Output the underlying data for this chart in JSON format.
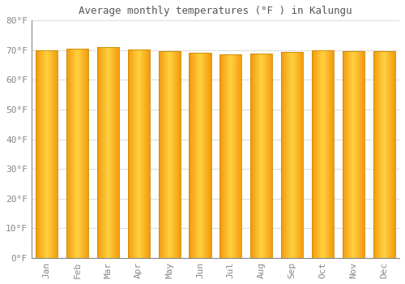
{
  "months": [
    "Jan",
    "Feb",
    "Mar",
    "Apr",
    "May",
    "Jun",
    "Jul",
    "Aug",
    "Sep",
    "Oct",
    "Nov",
    "Dec"
  ],
  "values": [
    70.0,
    70.5,
    71.1,
    70.2,
    69.6,
    69.1,
    68.5,
    69.0,
    69.5,
    70.0,
    69.8,
    69.6
  ],
  "title": "Average monthly temperatures (°F ) in Kalungu",
  "ylim": [
    0,
    80
  ],
  "yticks": [
    0,
    10,
    20,
    30,
    40,
    50,
    60,
    70,
    80
  ],
  "ytick_labels": [
    "0°F",
    "10°F",
    "20°F",
    "30°F",
    "40°F",
    "50°F",
    "60°F",
    "70°F",
    "80°F"
  ],
  "bar_color_center": "#FFCC44",
  "bar_color_edge": "#F0A000",
  "background_color": "#FFFFFF",
  "plot_bg_color": "#FFFFFF",
  "grid_color": "#DDDDDD",
  "title_color": "#555555",
  "tick_color": "#888888",
  "bar_edge_color": "#CC8800",
  "bar_width": 0.72,
  "figsize": [
    5.0,
    3.5
  ],
  "dpi": 100
}
